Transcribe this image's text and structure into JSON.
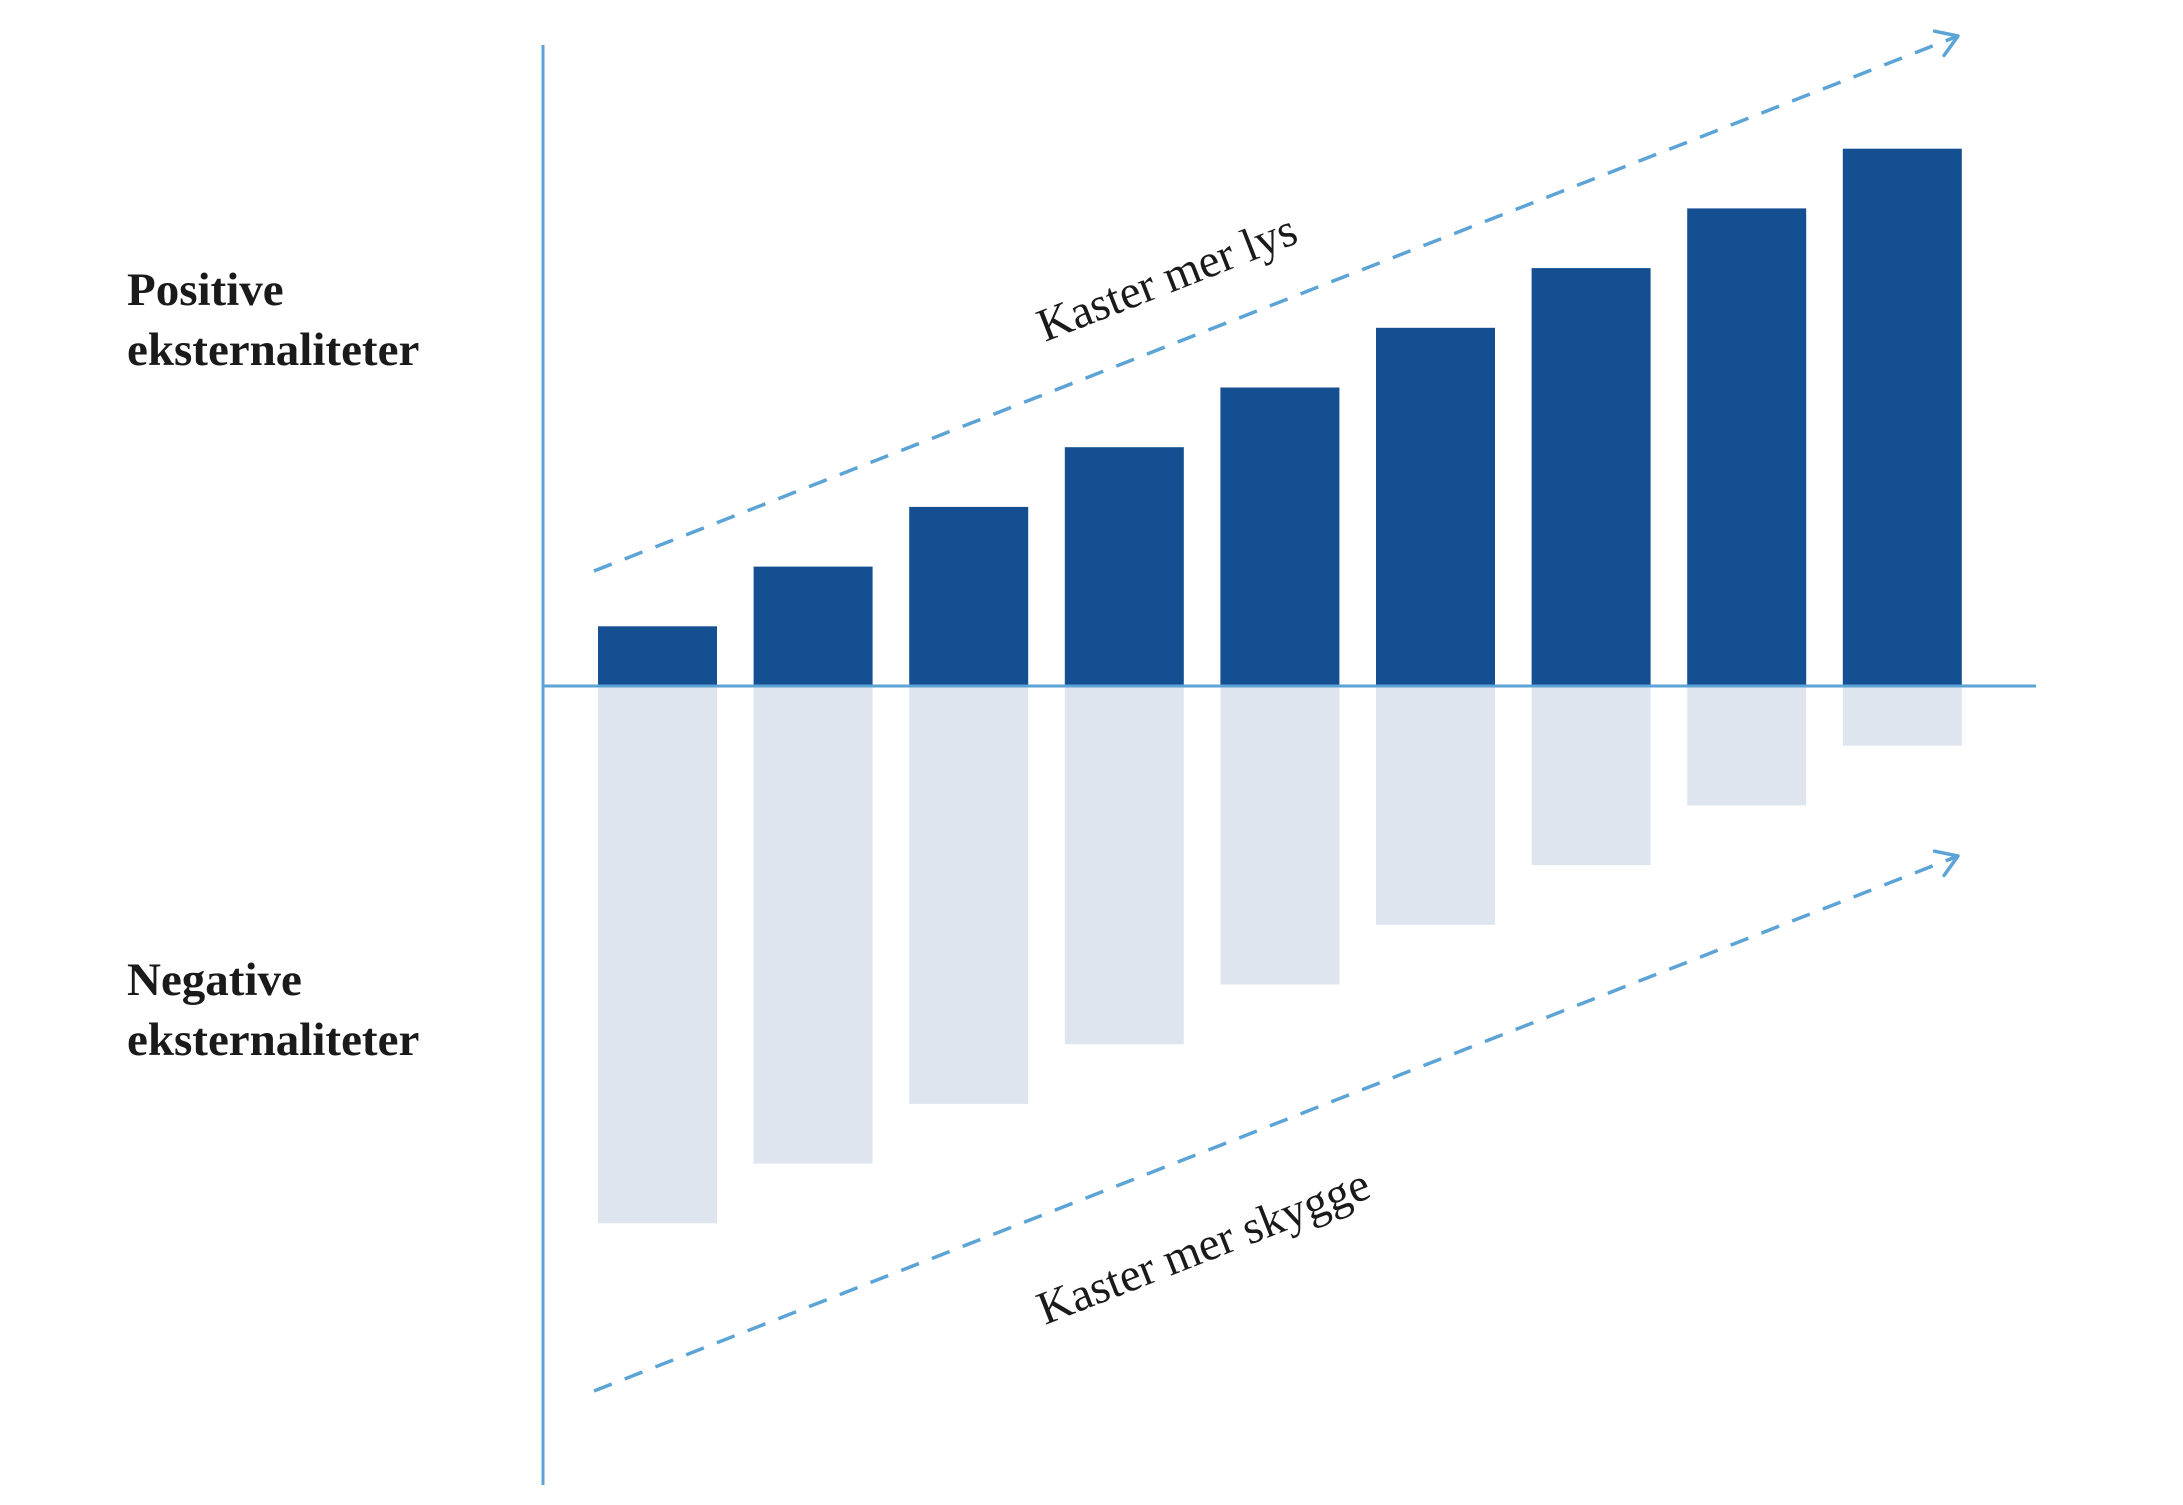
{
  "labels": {
    "positive_line1": "Positive",
    "positive_line2": "eksternaliteter",
    "negative_line1": "Negative",
    "negative_line2": "eksternaliteter"
  },
  "annotations": {
    "upper": "Kaster mer lys",
    "lower": "Kaster mer skygge"
  },
  "colors": {
    "positive_bar": "#144f91",
    "negative_bar": "#dfe5ef",
    "axis": "#5ca3d6",
    "trend_arrow": "#5ca3d6"
  },
  "chart_data": {
    "type": "bar",
    "stacked_diverging": true,
    "categories": [
      "",
      "",
      "",
      "",
      "",
      "",
      "",
      "",
      ""
    ],
    "series": [
      {
        "name": "Positive eksternaliteter",
        "values": [
          1,
          2,
          3,
          4,
          5,
          6,
          7,
          8,
          9
        ]
      },
      {
        "name": "Negative eksternaliteter",
        "values": [
          -9,
          -8,
          -7,
          -6,
          -5,
          -4,
          -3,
          -2,
          -1
        ]
      }
    ],
    "ylim": [
      -13.5,
      10.5
    ],
    "grid": false,
    "legend": "none",
    "xlabel": "",
    "ylabel": ""
  }
}
